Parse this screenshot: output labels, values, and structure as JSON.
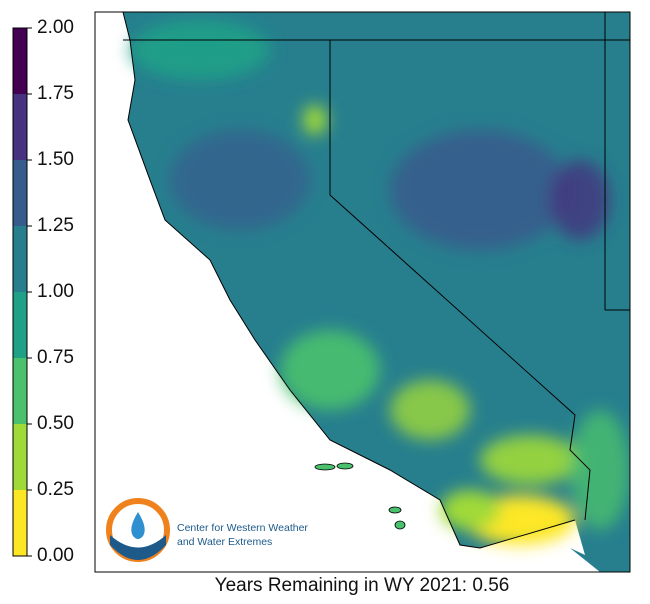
{
  "colorbar": {
    "lim": [
      0,
      2
    ],
    "ticks": [
      {
        "value": 0,
        "label": "0.00"
      },
      {
        "value": 0.25,
        "label": "0.25"
      },
      {
        "value": 0.5,
        "label": "0.50"
      },
      {
        "value": 0.75,
        "label": "0.75"
      },
      {
        "value": 1,
        "label": "1.00"
      },
      {
        "value": 1.25,
        "label": "1.25"
      },
      {
        "value": 1.5,
        "label": "1.50"
      },
      {
        "value": 1.75,
        "label": "1.75"
      },
      {
        "value": 2,
        "label": "2.00"
      }
    ],
    "colors": [
      "#fde725",
      "#a0da39",
      "#4ac16d",
      "#1fa187",
      "#277f8e",
      "#365c8d",
      "#46327e",
      "#440154"
    ]
  },
  "caption": "Years Remaining in WY 2021: 0.56",
  "logo": {
    "lines": [
      "Center for Western Weather",
      "and Water Extremes"
    ]
  }
}
